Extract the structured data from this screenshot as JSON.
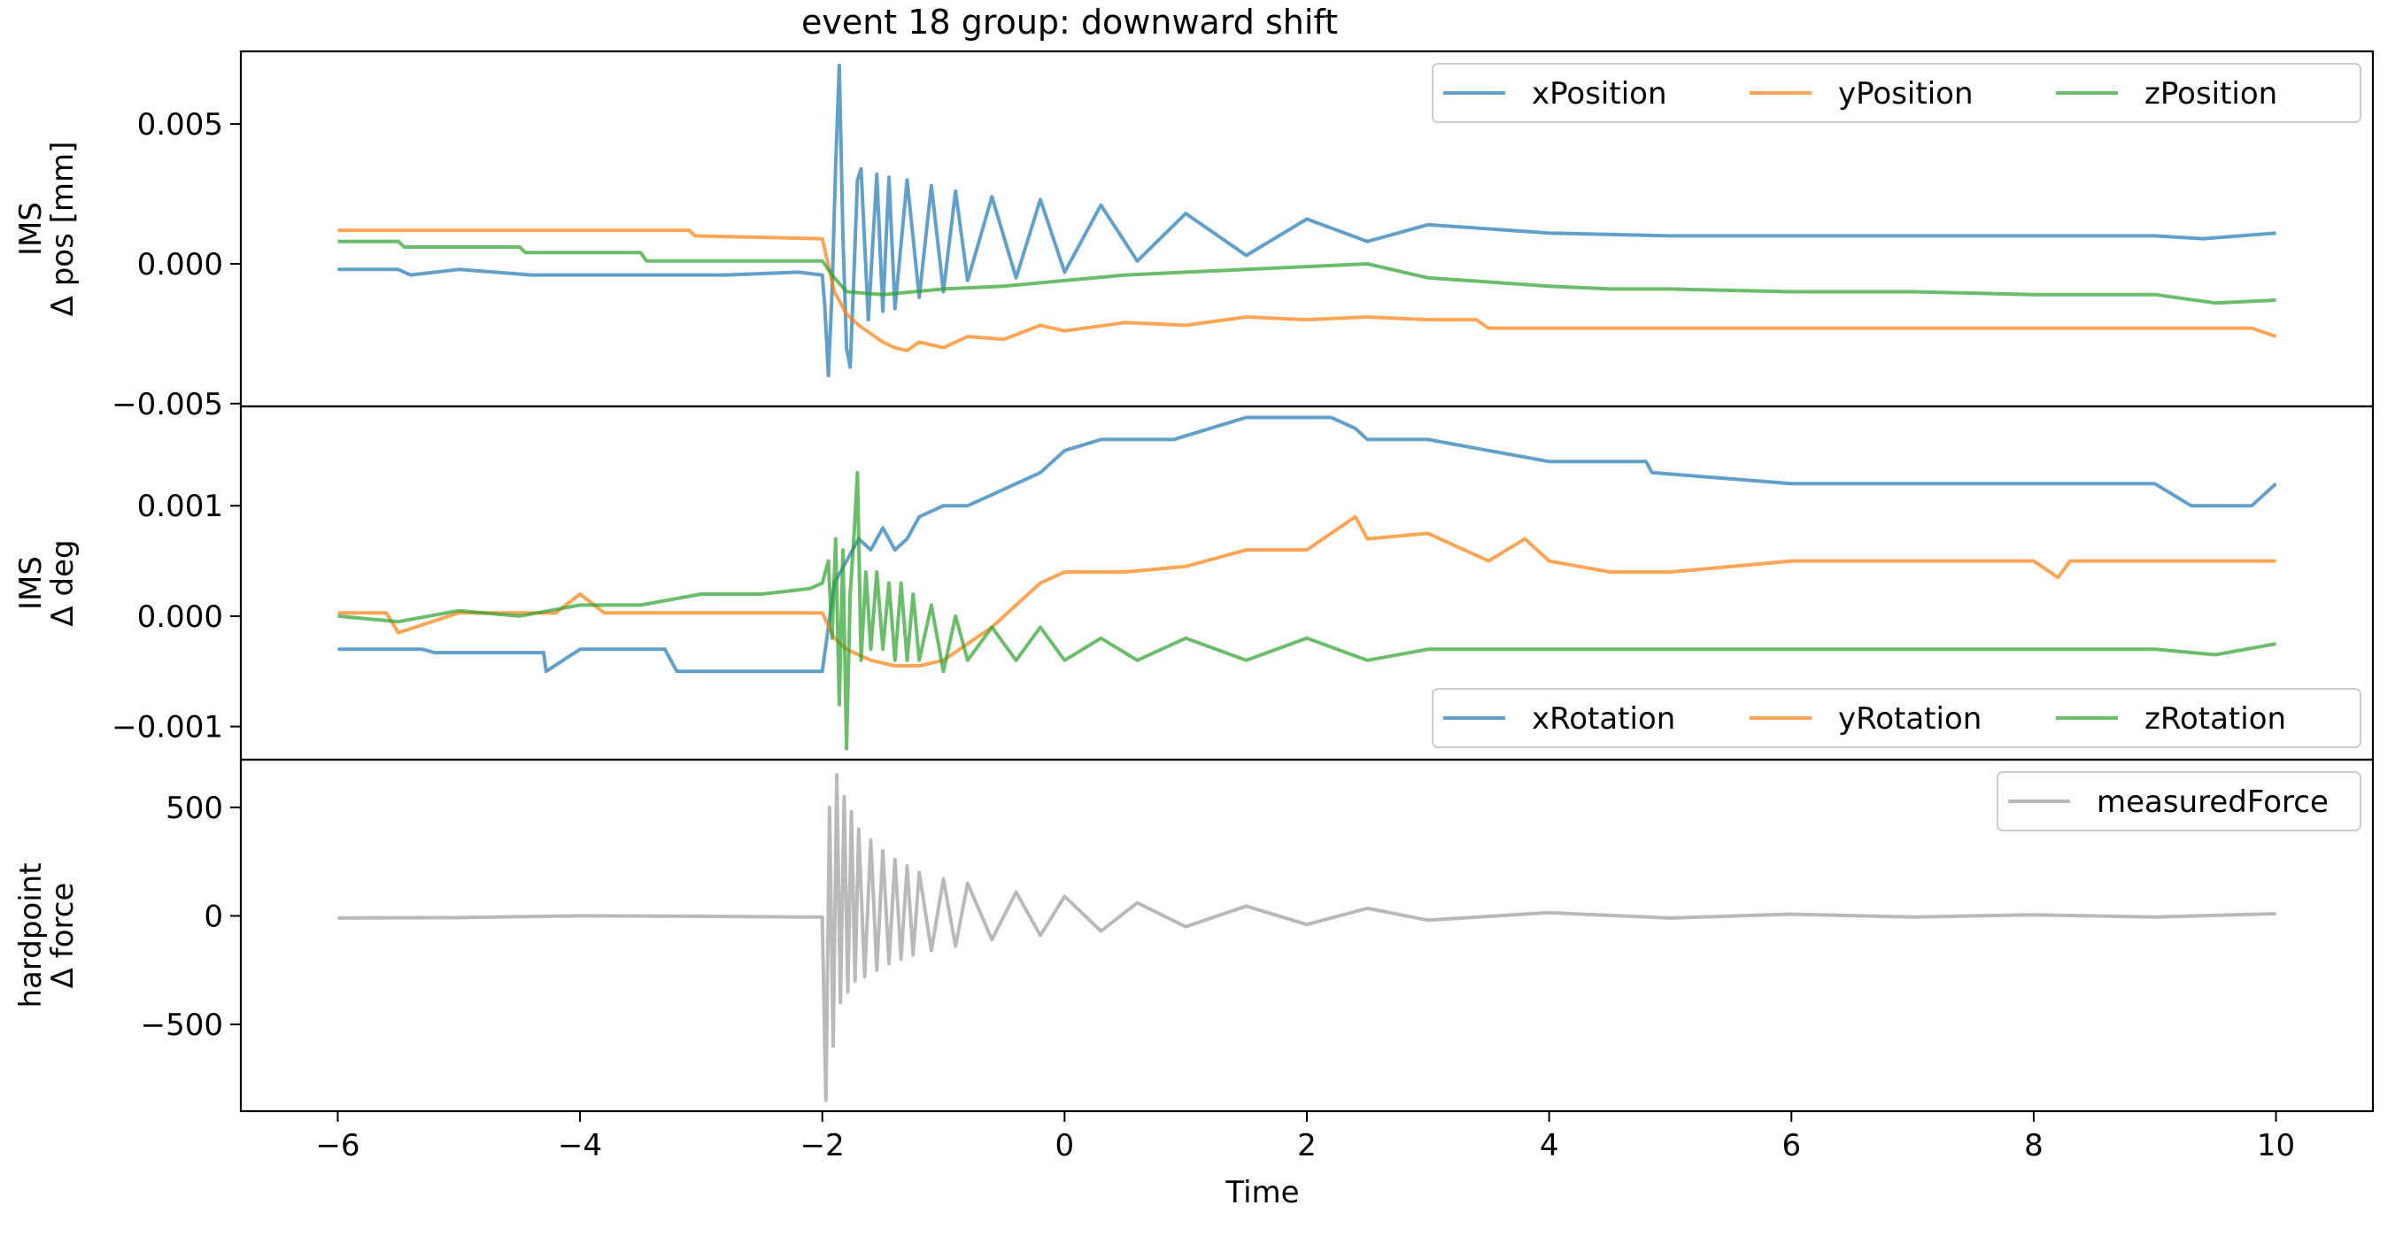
{
  "chart_data": {
    "type": "line",
    "title": "event 18 group: downward shift",
    "xlabel": "Time",
    "xlim": [
      -6.8,
      10.8
    ],
    "xticks": [
      -6,
      -4,
      -2,
      0,
      2,
      4,
      6,
      8,
      10
    ],
    "xtick_labels": [
      "−6",
      "−4",
      "−2",
      "0",
      "2",
      "4",
      "6",
      "8",
      "10"
    ],
    "grid": false,
    "panels": [
      {
        "id": "position",
        "ylabel": [
          "IMS",
          "Δ pos [mm]"
        ],
        "ylim": [
          -0.0051,
          0.0076
        ],
        "yticks": [
          -0.005,
          0.0,
          0.005
        ],
        "ytick_labels": [
          "−0.005",
          "0.000",
          "0.005"
        ],
        "legend_loc": "upper right",
        "colors": {
          "xPosition": "#1f77b4",
          "yPosition": "#ff7f0e",
          "zPosition": "#2ca02c"
        },
        "series": [
          {
            "name": "xPosition",
            "color": "#1f77b4",
            "x": [
              -6,
              -5.5,
              -5.4,
              -5.0,
              -4.4,
              -2.8,
              -2.2,
              -2.0,
              -1.98,
              -1.95,
              -1.92,
              -1.89,
              -1.86,
              -1.83,
              -1.8,
              -1.77,
              -1.74,
              -1.71,
              -1.68,
              -1.62,
              -1.55,
              -1.5,
              -1.45,
              -1.4,
              -1.3,
              -1.2,
              -1.1,
              -1.0,
              -0.9,
              -0.8,
              -0.6,
              -0.4,
              -0.2,
              0.0,
              0.3,
              0.6,
              1.0,
              1.5,
              2.0,
              2.5,
              3.0,
              4.0,
              5.0,
              6.0,
              7.0,
              8.0,
              9.0,
              9.4,
              10.0
            ],
            "y": [
              -0.0002,
              -0.0002,
              -0.0004,
              -0.0002,
              -0.0004,
              -0.0004,
              -0.0003,
              -0.0004,
              -0.0015,
              -0.004,
              -0.001,
              0.0035,
              0.0071,
              0.001,
              -0.003,
              -0.0037,
              -0.0005,
              0.003,
              0.0034,
              -0.002,
              0.0032,
              -0.0017,
              0.0031,
              -0.0016,
              0.003,
              -0.0012,
              0.0028,
              -0.001,
              0.0026,
              -0.0006,
              0.0024,
              -0.0005,
              0.0023,
              -0.0003,
              0.0021,
              0.0001,
              0.0018,
              0.0003,
              0.0016,
              0.0008,
              0.0014,
              0.0011,
              0.001,
              0.001,
              0.001,
              0.001,
              0.001,
              0.0009,
              0.0011
            ]
          },
          {
            "name": "yPosition",
            "color": "#ff7f0e",
            "x": [
              -6,
              -3.1,
              -3.05,
              -2.0,
              -1.9,
              -1.8,
              -1.7,
              -1.6,
              -1.5,
              -1.4,
              -1.3,
              -1.2,
              -1.0,
              -0.8,
              -0.5,
              -0.2,
              0.0,
              0.5,
              1.0,
              1.5,
              2.0,
              2.5,
              3.0,
              3.4,
              3.5,
              5.0,
              6.0,
              7.0,
              8.0,
              9.0,
              9.8,
              10.0
            ],
            "y": [
              0.0012,
              0.0012,
              0.001,
              0.0009,
              -0.001,
              -0.0018,
              -0.0022,
              -0.0025,
              -0.0028,
              -0.003,
              -0.0031,
              -0.0028,
              -0.003,
              -0.0026,
              -0.0027,
              -0.0022,
              -0.0024,
              -0.0021,
              -0.0022,
              -0.0019,
              -0.002,
              -0.0019,
              -0.002,
              -0.002,
              -0.0023,
              -0.0023,
              -0.0023,
              -0.0023,
              -0.0023,
              -0.0023,
              -0.0023,
              -0.0026
            ]
          },
          {
            "name": "zPosition",
            "color": "#2ca02c",
            "x": [
              -6,
              -5.5,
              -5.45,
              -4.5,
              -4.45,
              -3.5,
              -3.45,
              -2.0,
              -1.9,
              -1.8,
              -1.5,
              -1.0,
              -0.5,
              0.0,
              0.5,
              1.0,
              1.5,
              2.0,
              2.5,
              3.0,
              4.0,
              4.5,
              5.0,
              6.0,
              7.0,
              8.0,
              9.0,
              9.5,
              10.0
            ],
            "y": [
              0.0008,
              0.0008,
              0.0006,
              0.0006,
              0.0004,
              0.0004,
              0.0001,
              0.0001,
              -0.0005,
              -0.001,
              -0.0011,
              -0.0009,
              -0.0008,
              -0.0006,
              -0.0004,
              -0.0003,
              -0.0002,
              -0.0001,
              0.0,
              -0.0005,
              -0.0008,
              -0.0009,
              -0.0009,
              -0.001,
              -0.001,
              -0.0011,
              -0.0011,
              -0.0014,
              -0.0013
            ]
          }
        ]
      },
      {
        "id": "rotation",
        "ylabel": [
          "IMS",
          "Δ deg"
        ],
        "ylim": [
          -0.0013,
          0.0019
        ],
        "yticks": [
          -0.001,
          0.0,
          0.001
        ],
        "ytick_labels": [
          "−0.001",
          "0.000",
          "0.001"
        ],
        "legend_loc": "lower right",
        "colors": {
          "xRotation": "#1f77b4",
          "yRotation": "#ff7f0e",
          "zRotation": "#2ca02c"
        },
        "series": [
          {
            "name": "xRotation",
            "color": "#1f77b4",
            "x": [
              -6,
              -5.3,
              -5.2,
              -4.3,
              -4.28,
              -4.0,
              -3.3,
              -3.2,
              -2.0,
              -1.9,
              -1.8,
              -1.7,
              -1.6,
              -1.5,
              -1.4,
              -1.3,
              -1.2,
              -1.0,
              -0.8,
              -0.6,
              -0.4,
              -0.2,
              0.0,
              0.3,
              0.6,
              0.9,
              1.2,
              1.5,
              1.8,
              2.2,
              2.4,
              2.5,
              3.0,
              4.0,
              4.8,
              4.85,
              6.0,
              7.0,
              7.5,
              8.0,
              9.0,
              9.3,
              9.8,
              10.0
            ],
            "y": [
              -0.0003,
              -0.0003,
              -0.00033,
              -0.00033,
              -0.0005,
              -0.0003,
              -0.0003,
              -0.0005,
              -0.0005,
              0.0003,
              0.0005,
              0.0007,
              0.0006,
              0.0008,
              0.0006,
              0.0007,
              0.0009,
              0.001,
              0.001,
              0.0011,
              0.0012,
              0.0013,
              0.0015,
              0.0016,
              0.0016,
              0.0016,
              0.0017,
              0.0018,
              0.0018,
              0.0018,
              0.0017,
              0.0016,
              0.0016,
              0.0014,
              0.0014,
              0.0013,
              0.0012,
              0.0012,
              0.0012,
              0.0012,
              0.0012,
              0.001,
              0.001,
              0.0012
            ]
          },
          {
            "name": "yRotation",
            "color": "#ff7f0e",
            "x": [
              -6,
              -5.6,
              -5.5,
              -5.0,
              -4.2,
              -4.0,
              -3.8,
              -2.0,
              -1.9,
              -1.8,
              -1.6,
              -1.4,
              -1.2,
              -1.0,
              -0.6,
              -0.4,
              -0.2,
              0.0,
              0.5,
              1.0,
              1.5,
              2.0,
              2.4,
              2.5,
              3.0,
              3.5,
              3.8,
              4.0,
              4.5,
              5.0,
              6.0,
              7.0,
              8.0,
              8.2,
              8.3,
              9.0,
              10.0
            ],
            "y": [
              3e-05,
              3e-05,
              -0.00015,
              3e-05,
              3e-05,
              0.0002,
              3e-05,
              3e-05,
              -0.0002,
              -0.0003,
              -0.0004,
              -0.00045,
              -0.00045,
              -0.0004,
              -0.0001,
              0.0001,
              0.0003,
              0.0004,
              0.0004,
              0.00045,
              0.0006,
              0.0006,
              0.0009,
              0.0007,
              0.00075,
              0.0005,
              0.0007,
              0.0005,
              0.0004,
              0.0004,
              0.0005,
              0.0005,
              0.0005,
              0.00035,
              0.0005,
              0.0005,
              0.0005
            ]
          },
          {
            "name": "zRotation",
            "color": "#2ca02c",
            "x": [
              -6,
              -5.5,
              -5.0,
              -4.5,
              -4.0,
              -3.5,
              -3.0,
              -2.5,
              -2.1,
              -2.0,
              -1.95,
              -1.92,
              -1.89,
              -1.86,
              -1.83,
              -1.8,
              -1.77,
              -1.74,
              -1.71,
              -1.68,
              -1.64,
              -1.6,
              -1.55,
              -1.5,
              -1.45,
              -1.4,
              -1.35,
              -1.3,
              -1.25,
              -1.2,
              -1.1,
              -1.0,
              -0.9,
              -0.8,
              -0.6,
              -0.4,
              -0.2,
              0.0,
              0.3,
              0.6,
              1.0,
              1.5,
              2.0,
              2.5,
              3.0,
              4.0,
              5.0,
              6.0,
              7.0,
              8.0,
              9.0,
              9.5,
              10.0
            ],
            "y": [
              0.0,
              -5e-05,
              5e-05,
              0.0,
              0.0001,
              0.0001,
              0.0002,
              0.0002,
              0.00025,
              0.0003,
              0.0005,
              -0.0002,
              0.0007,
              -0.0008,
              0.0006,
              -0.0012,
              0.0002,
              0.0007,
              0.0013,
              -0.0004,
              0.0004,
              -0.0003,
              0.0004,
              -0.0003,
              0.0003,
              -0.0004,
              0.0003,
              -0.0004,
              0.0002,
              -0.0004,
              0.0001,
              -0.0005,
              0.0,
              -0.0004,
              -0.0001,
              -0.0004,
              -0.0001,
              -0.0004,
              -0.0002,
              -0.0004,
              -0.0002,
              -0.0004,
              -0.0002,
              -0.0004,
              -0.0003,
              -0.0003,
              -0.0003,
              -0.0003,
              -0.0003,
              -0.0003,
              -0.0003,
              -0.00035,
              -0.00025
            ]
          }
        ]
      },
      {
        "id": "force",
        "ylabel": [
          "hardpoint",
          "Δ force"
        ],
        "ylim": [
          -900,
          720
        ],
        "yticks": [
          -500,
          0,
          500
        ],
        "ytick_labels": [
          "−500",
          "0",
          "500"
        ],
        "legend_loc": "upper right",
        "colors": {
          "measuredForce": "#7f7f7f"
        },
        "series": [
          {
            "name": "measuredForce",
            "color": "#7f7f7f",
            "x": [
              -6,
              -5.0,
              -4.0,
              -3.0,
              -2.2,
              -2.0,
              -1.97,
              -1.94,
              -1.91,
              -1.88,
              -1.85,
              -1.82,
              -1.79,
              -1.76,
              -1.73,
              -1.7,
              -1.65,
              -1.6,
              -1.55,
              -1.5,
              -1.45,
              -1.4,
              -1.35,
              -1.3,
              -1.25,
              -1.2,
              -1.1,
              -1.0,
              -0.9,
              -0.8,
              -0.6,
              -0.4,
              -0.2,
              0.0,
              0.3,
              0.6,
              1.0,
              1.5,
              2.0,
              2.5,
              3.0,
              4.0,
              5.0,
              6.0,
              7.0,
              8.0,
              9.0,
              10.0
            ],
            "y": [
              -10,
              -8,
              0,
              -2,
              -5,
              -5,
              -850,
              500,
              -600,
              650,
              -400,
              550,
              -350,
              480,
              -300,
              400,
              -280,
              350,
              -250,
              300,
              -220,
              260,
              -200,
              230,
              -180,
              200,
              -160,
              170,
              -140,
              150,
              -110,
              110,
              -90,
              90,
              -70,
              60,
              -50,
              45,
              -40,
              35,
              -20,
              15,
              -10,
              8,
              -5,
              5,
              -5,
              10
            ]
          }
        ]
      }
    ]
  }
}
